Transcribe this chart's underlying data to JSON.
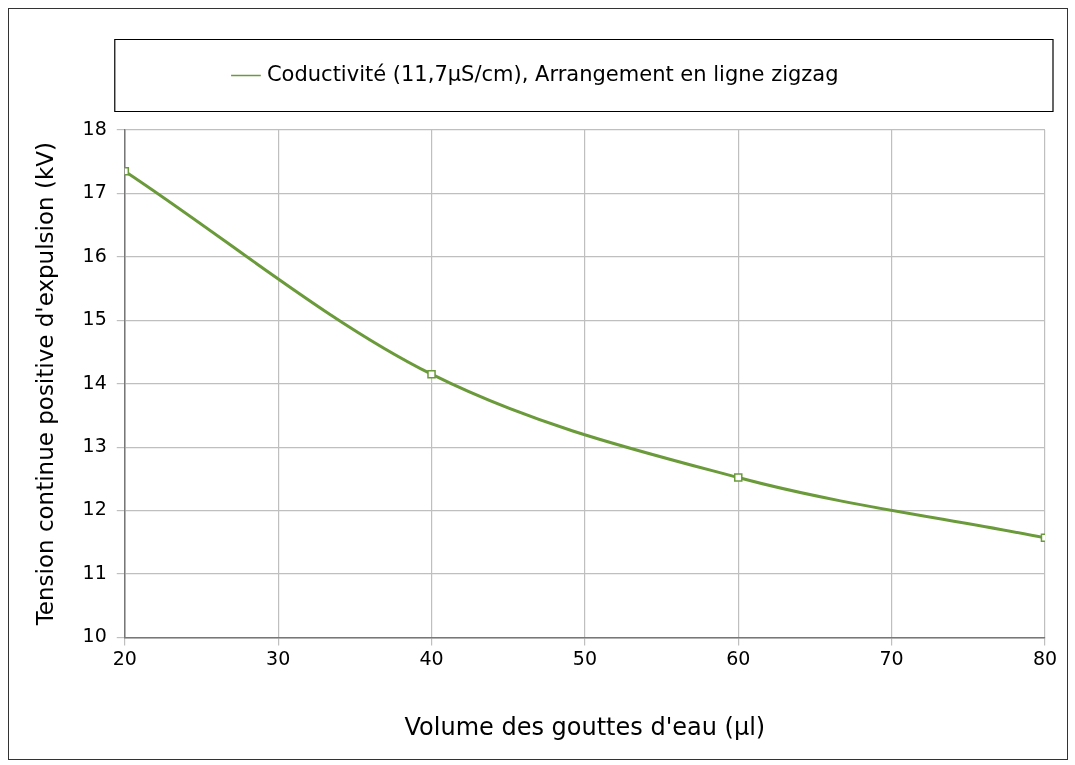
{
  "chart_data": {
    "type": "line",
    "xlabel": "Volume des gouttes d'eau (µl)",
    "ylabel": "Tension continue positive d'expulsion (kV)",
    "x": [
      20,
      40,
      60,
      80
    ],
    "series": [
      {
        "name": "Coductivité (11,7µS/cm), Arrangement en ligne zigzag",
        "color": "#6a9a3a",
        "values": [
          17.35,
          14.15,
          12.52,
          11.57
        ]
      }
    ],
    "xlim": [
      20,
      80
    ],
    "xticks": [
      20,
      30,
      40,
      50,
      60,
      70,
      80
    ],
    "ylim": [
      10,
      18
    ],
    "yticks": [
      10,
      11,
      12,
      13,
      14,
      15,
      16,
      17,
      18
    ],
    "grid": true,
    "legend": "top",
    "marker": "square",
    "line_style": "solid"
  }
}
